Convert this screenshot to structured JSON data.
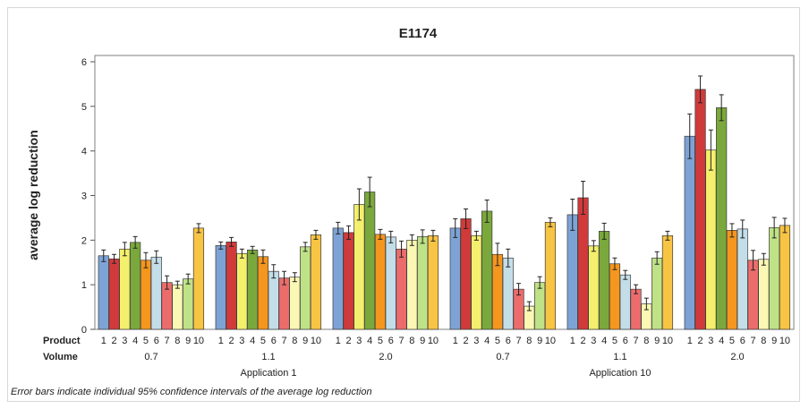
{
  "chart_data": {
    "type": "bar",
    "title": "E1174",
    "ylabel": "average log reduction",
    "ylim": [
      0,
      6
    ],
    "yticks": [
      0,
      1,
      2,
      3,
      4,
      5,
      6
    ],
    "row_labels": {
      "product": "Product",
      "volume": "Volume"
    },
    "products": [
      "1",
      "2",
      "3",
      "4",
      "5",
      "6",
      "7",
      "8",
      "9",
      "10"
    ],
    "product_colors": [
      "#7da3d6",
      "#d03a3a",
      "#f4ef6c",
      "#7aa83c",
      "#f5961e",
      "#c3dee9",
      "#ec6c6c",
      "#fbf7b4",
      "#bfe287",
      "#f8c443"
    ],
    "applications": [
      {
        "name": "Application 1",
        "volumes": [
          {
            "volume": "0.7",
            "values": [
              1.65,
              1.58,
              1.8,
              1.95,
              1.55,
              1.62,
              1.05,
              1.0,
              1.13,
              2.27
            ],
            "ci": [
              [
                1.52,
                1.78
              ],
              [
                1.48,
                1.68
              ],
              [
                1.65,
                1.95
              ],
              [
                1.82,
                2.08
              ],
              [
                1.38,
                1.72
              ],
              [
                1.48,
                1.76
              ],
              [
                0.9,
                1.2
              ],
              [
                0.92,
                1.08
              ],
              [
                1.02,
                1.24
              ],
              [
                2.17,
                2.37
              ]
            ]
          },
          {
            "volume": "1.1",
            "values": [
              1.88,
              1.96,
              1.7,
              1.78,
              1.63,
              1.3,
              1.15,
              1.17,
              1.85,
              2.12
            ],
            "ci": [
              [
                1.8,
                1.96
              ],
              [
                1.86,
                2.06
              ],
              [
                1.6,
                1.8
              ],
              [
                1.7,
                1.86
              ],
              [
                1.48,
                1.78
              ],
              [
                1.15,
                1.45
              ],
              [
                1.0,
                1.3
              ],
              [
                1.07,
                1.27
              ],
              [
                1.75,
                1.95
              ],
              [
                2.02,
                2.22
              ]
            ]
          },
          {
            "volume": "2.0",
            "values": [
              2.27,
              2.17,
              2.8,
              3.08,
              2.13,
              2.07,
              1.8,
              2.0,
              2.08,
              2.1
            ],
            "ci": [
              [
                2.14,
                2.4
              ],
              [
                2.02,
                2.32
              ],
              [
                2.45,
                3.15
              ],
              [
                2.75,
                3.41
              ],
              [
                2.02,
                2.24
              ],
              [
                1.94,
                2.2
              ],
              [
                1.62,
                1.98
              ],
              [
                1.88,
                2.12
              ],
              [
                1.93,
                2.23
              ],
              [
                1.98,
                2.22
              ]
            ]
          }
        ]
      },
      {
        "name": "Application 10",
        "volumes": [
          {
            "volume": "0.7",
            "values": [
              2.27,
              2.48,
              2.1,
              2.65,
              1.68,
              1.6,
              0.9,
              0.52,
              1.05,
              2.4
            ],
            "ci": [
              [
                2.06,
                2.48
              ],
              [
                2.26,
                2.7
              ],
              [
                2.0,
                2.2
              ],
              [
                2.4,
                2.9
              ],
              [
                1.43,
                1.93
              ],
              [
                1.4,
                1.8
              ],
              [
                0.77,
                1.03
              ],
              [
                0.42,
                0.62
              ],
              [
                0.92,
                1.18
              ],
              [
                2.3,
                2.5
              ]
            ]
          },
          {
            "volume": "1.1",
            "values": [
              2.57,
              2.95,
              1.87,
              2.2,
              1.47,
              1.22,
              0.9,
              0.57,
              1.6,
              2.1
            ],
            "ci": [
              [
                2.22,
                2.92
              ],
              [
                2.58,
                3.32
              ],
              [
                1.75,
                1.99
              ],
              [
                2.02,
                2.38
              ],
              [
                1.34,
                1.6
              ],
              [
                1.12,
                1.32
              ],
              [
                0.8,
                1.0
              ],
              [
                0.44,
                0.7
              ],
              [
                1.46,
                1.74
              ],
              [
                2.0,
                2.2
              ]
            ]
          },
          {
            "volume": "2.0",
            "values": [
              4.33,
              5.38,
              4.02,
              4.97,
              2.22,
              2.25,
              1.55,
              1.57,
              2.28,
              2.33
            ],
            "ci": [
              [
                3.83,
                4.83
              ],
              [
                5.08,
                5.68
              ],
              [
                3.57,
                4.47
              ],
              [
                4.68,
                5.26
              ],
              [
                2.07,
                2.37
              ],
              [
                2.05,
                2.45
              ],
              [
                1.33,
                1.77
              ],
              [
                1.44,
                1.7
              ],
              [
                2.05,
                2.51
              ],
              [
                2.17,
                2.49
              ]
            ]
          }
        ]
      }
    ],
    "footnote": "Error bars indicate individual 95% confidence intervals of the average log reduction"
  }
}
